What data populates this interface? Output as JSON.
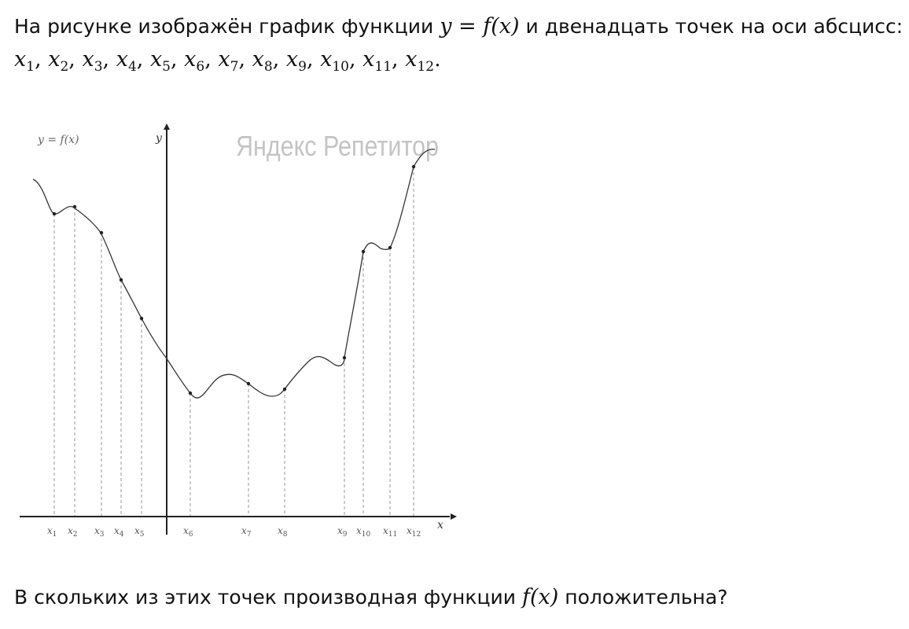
{
  "task": {
    "intro_text": "На рисунке изображён график функции",
    "formula_eq": "y = f(x)",
    "intro_end": "и двенадцать точек на оси абсцисс:",
    "question": "В скольких из этих точек производная функции",
    "question_func": "f(x)",
    "question_end": "положительна?"
  },
  "point_list": [
    {
      "sym": "x",
      "sub": "1"
    },
    {
      "sym": "x",
      "sub": "2"
    },
    {
      "sym": "x",
      "sub": "3"
    },
    {
      "sym": "x",
      "sub": "4"
    },
    {
      "sym": "x",
      "sub": "5"
    },
    {
      "sym": "x",
      "sub": "6"
    },
    {
      "sym": "x",
      "sub": "7"
    },
    {
      "sym": "x",
      "sub": "8"
    },
    {
      "sym": "x",
      "sub": "9"
    },
    {
      "sym": "x",
      "sub": "10"
    },
    {
      "sym": "x",
      "sub": "11"
    },
    {
      "sym": "x",
      "sub": "12"
    }
  ],
  "figure": {
    "graph_label": "y = f(x)",
    "y_axis_label": "y",
    "x_axis_label": "x",
    "watermark": "Яндекс Репетитор",
    "curve_color": "#333333",
    "guide_color": "#9a9a9a"
  }
}
